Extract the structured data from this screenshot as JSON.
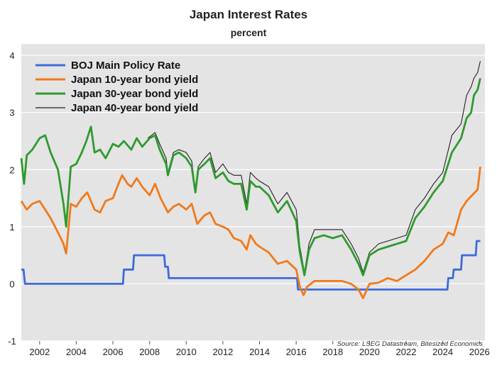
{
  "chart_data": {
    "type": "line",
    "title": "Japan Interest Rates",
    "subtitle": "percent",
    "source": "Source: LSEG Datastream, Bitesized Economics",
    "xlim": [
      2001.0,
      2026.3
    ],
    "ylim": [
      -1,
      4.2
    ],
    "x_ticks": [
      2002,
      2004,
      2006,
      2008,
      2010,
      2012,
      2014,
      2016,
      2018,
      2020,
      2022,
      2024,
      2026
    ],
    "y_ticks": [
      -1,
      0,
      1,
      2,
      3,
      4
    ],
    "grid": "horizontal",
    "legend_position": "top-left",
    "series": [
      {
        "name": "BOJ Main Policy Rate",
        "color": "#3d6bd9",
        "x": [
          2001.0,
          2001.12,
          2001.2,
          2006.55,
          2006.6,
          2007.1,
          2007.15,
          2008.8,
          2008.85,
          2009.0,
          2009.05,
          2016.05,
          2016.1,
          2024.25,
          2024.3,
          2024.55,
          2024.6,
          2025.0,
          2025.05,
          2025.8,
          2025.85,
          2026.05
        ],
        "values": [
          0.25,
          0.25,
          0.0,
          0.0,
          0.25,
          0.25,
          0.5,
          0.5,
          0.3,
          0.3,
          0.1,
          0.1,
          -0.1,
          -0.1,
          0.1,
          0.1,
          0.25,
          0.25,
          0.5,
          0.5,
          0.75,
          0.75
        ]
      },
      {
        "name": "Japan 10-year bond yield",
        "color": "#f07a1a",
        "x": [
          2001.0,
          2001.3,
          2001.6,
          2002.0,
          2002.3,
          2002.6,
          2003.0,
          2003.3,
          2003.45,
          2003.7,
          2004.0,
          2004.3,
          2004.6,
          2005.0,
          2005.3,
          2005.6,
          2006.0,
          2006.3,
          2006.5,
          2006.8,
          2007.0,
          2007.3,
          2007.6,
          2008.0,
          2008.3,
          2008.6,
          2009.0,
          2009.3,
          2009.6,
          2010.0,
          2010.3,
          2010.6,
          2011.0,
          2011.3,
          2011.6,
          2012.0,
          2012.3,
          2012.6,
          2013.0,
          2013.3,
          2013.5,
          2013.8,
          2014.0,
          2014.5,
          2015.0,
          2015.5,
          2016.0,
          2016.2,
          2016.4,
          2016.6,
          2017.0,
          2017.5,
          2018.0,
          2018.5,
          2019.0,
          2019.4,
          2019.65,
          2020.0,
          2020.5,
          2021.0,
          2021.5,
          2022.0,
          2022.5,
          2023.0,
          2023.5,
          2024.0,
          2024.3,
          2024.6,
          2025.0,
          2025.3,
          2025.6,
          2025.9,
          2026.05
        ],
        "values": [
          1.45,
          1.3,
          1.4,
          1.45,
          1.3,
          1.15,
          0.9,
          0.7,
          0.53,
          1.4,
          1.35,
          1.5,
          1.6,
          1.3,
          1.25,
          1.45,
          1.5,
          1.75,
          1.9,
          1.75,
          1.7,
          1.85,
          1.7,
          1.55,
          1.75,
          1.5,
          1.25,
          1.35,
          1.4,
          1.3,
          1.4,
          1.05,
          1.2,
          1.25,
          1.05,
          1.0,
          0.95,
          0.8,
          0.75,
          0.6,
          0.85,
          0.7,
          0.65,
          0.55,
          0.35,
          0.4,
          0.25,
          -0.05,
          -0.2,
          -0.05,
          0.05,
          0.05,
          0.05,
          0.05,
          0.0,
          -0.1,
          -0.25,
          0.0,
          0.02,
          0.1,
          0.05,
          0.15,
          0.25,
          0.4,
          0.6,
          0.7,
          0.9,
          0.85,
          1.3,
          1.45,
          1.55,
          1.65,
          2.05
        ]
      },
      {
        "name": "Japan 30-year bond yield",
        "color": "#2e9a2e",
        "x": [
          2001.0,
          2001.15,
          2001.3,
          2001.6,
          2002.0,
          2002.3,
          2002.6,
          2003.0,
          2003.3,
          2003.45,
          2003.7,
          2004.0,
          2004.3,
          2004.55,
          2004.8,
          2005.0,
          2005.3,
          2005.6,
          2006.0,
          2006.3,
          2006.6,
          2007.0,
          2007.3,
          2007.6,
          2008.0,
          2008.3,
          2008.55,
          2008.9,
          2009.0,
          2009.3,
          2009.6,
          2010.0,
          2010.3,
          2010.5,
          2010.65,
          2011.0,
          2011.3,
          2011.6,
          2012.0,
          2012.3,
          2012.6,
          2013.0,
          2013.3,
          2013.5,
          2013.8,
          2014.0,
          2014.5,
          2015.0,
          2015.5,
          2016.0,
          2016.2,
          2016.45,
          2016.7,
          2017.0,
          2017.5,
          2018.0,
          2018.5,
          2019.0,
          2019.4,
          2019.65,
          2020.0,
          2020.5,
          2021.0,
          2021.5,
          2022.0,
          2022.5,
          2023.0,
          2023.5,
          2024.0,
          2024.5,
          2025.0,
          2025.3,
          2025.55,
          2025.7,
          2025.9,
          2026.05
        ],
        "values": [
          2.2,
          1.75,
          2.25,
          2.35,
          2.55,
          2.6,
          2.3,
          2.0,
          1.4,
          1.0,
          2.05,
          2.1,
          2.3,
          2.5,
          2.75,
          2.3,
          2.35,
          2.2,
          2.45,
          2.4,
          2.5,
          2.35,
          2.55,
          2.4,
          2.55,
          2.6,
          2.35,
          2.1,
          1.9,
          2.25,
          2.3,
          2.2,
          2.05,
          1.6,
          2.0,
          2.1,
          2.2,
          1.85,
          1.95,
          1.8,
          1.75,
          1.75,
          1.3,
          1.8,
          1.7,
          1.7,
          1.55,
          1.25,
          1.45,
          1.1,
          0.55,
          0.15,
          0.6,
          0.8,
          0.85,
          0.8,
          0.85,
          0.6,
          0.35,
          0.15,
          0.5,
          0.6,
          0.65,
          0.7,
          0.75,
          1.15,
          1.35,
          1.6,
          1.8,
          2.3,
          2.55,
          2.9,
          3.0,
          3.3,
          3.4,
          3.6
        ]
      },
      {
        "name": "Japan 40-year bond yield",
        "color": "#222222",
        "x": [
          2007.9,
          2008.3,
          2008.55,
          2008.9,
          2009.0,
          2009.3,
          2009.6,
          2010.0,
          2010.3,
          2010.5,
          2010.65,
          2011.0,
          2011.3,
          2011.6,
          2012.0,
          2012.3,
          2012.6,
          2013.0,
          2013.3,
          2013.5,
          2013.8,
          2014.0,
          2014.5,
          2015.0,
          2015.5,
          2016.0,
          2016.2,
          2016.45,
          2016.7,
          2017.0,
          2017.5,
          2018.0,
          2018.5,
          2019.0,
          2019.4,
          2019.65,
          2020.0,
          2020.5,
          2021.0,
          2021.5,
          2022.0,
          2022.5,
          2023.0,
          2023.5,
          2024.0,
          2024.5,
          2025.0,
          2025.3,
          2025.55,
          2025.7,
          2025.9,
          2026.05
        ],
        "values": [
          2.55,
          2.65,
          2.45,
          2.2,
          1.95,
          2.3,
          2.35,
          2.3,
          2.15,
          1.65,
          2.05,
          2.2,
          2.3,
          1.95,
          2.1,
          1.95,
          1.9,
          1.9,
          1.4,
          1.95,
          1.85,
          1.8,
          1.7,
          1.4,
          1.6,
          1.3,
          0.65,
          0.2,
          0.7,
          0.95,
          0.95,
          0.95,
          0.95,
          0.7,
          0.45,
          0.2,
          0.55,
          0.7,
          0.75,
          0.8,
          0.85,
          1.3,
          1.5,
          1.75,
          1.95,
          2.6,
          2.8,
          3.3,
          3.45,
          3.6,
          3.7,
          3.9
        ]
      }
    ]
  }
}
